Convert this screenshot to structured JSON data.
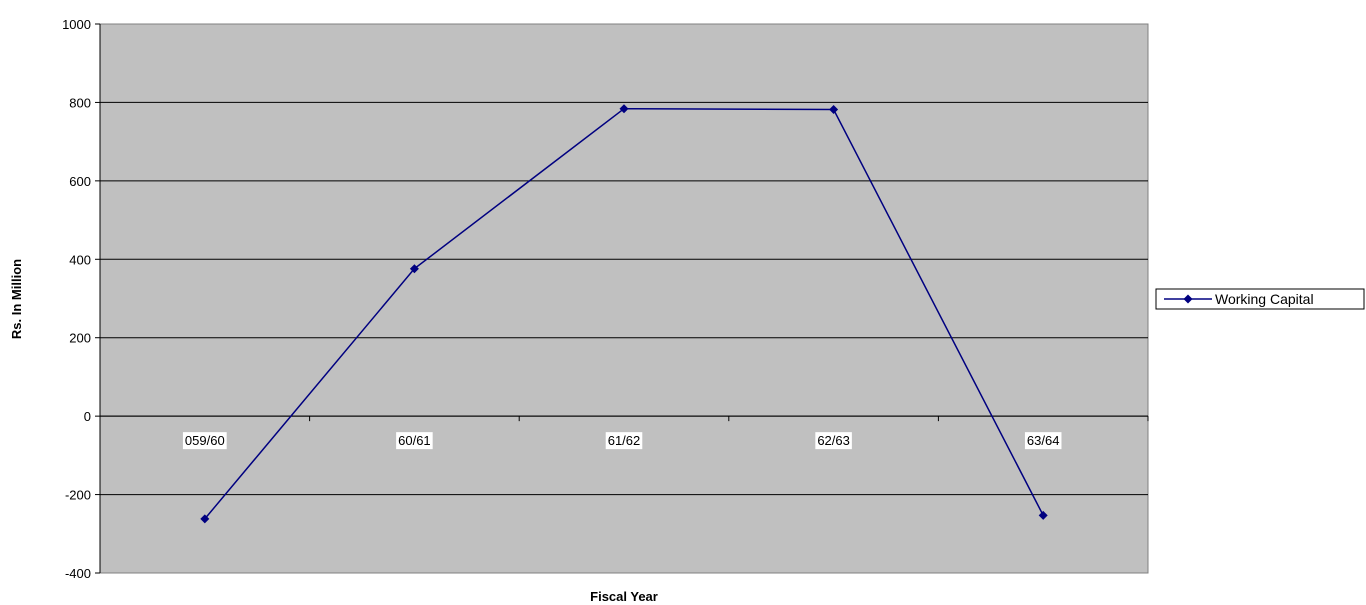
{
  "chart_data": {
    "type": "line",
    "categories": [
      "059/60",
      "60/61",
      "61/62",
      "62/63",
      "63/64"
    ],
    "series": [
      {
        "name": "Working Capital",
        "values": [
          -262,
          376,
          784,
          782,
          -253
        ],
        "color": "#000080"
      }
    ],
    "xlabel": "Fiscal Year",
    "ylabel": "Rs. In Million",
    "ylim": [
      -400,
      1000
    ],
    "yticks": [
      -400,
      -200,
      0,
      200,
      400,
      600,
      800,
      1000
    ],
    "grid": true,
    "plot_background": "#c0c0c0",
    "legend_position": "right",
    "marker": "diamond"
  }
}
